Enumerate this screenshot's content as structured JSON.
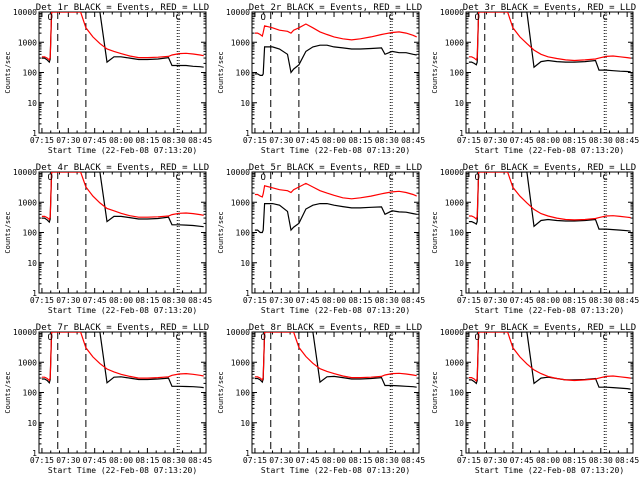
{
  "figure": {
    "start_time_label": "Start Time (22-Feb-08 07:13:20)",
    "ylabel": "Counts/sec"
  },
  "chart_data": [
    {
      "type": "line",
      "title": "Det 1r BLACK = Events, RED = LLD",
      "ylim": [
        1,
        10000
      ],
      "yscale": "log",
      "x": [
        0,
        1.5,
        3,
        4.2,
        4.7,
        5.5,
        10,
        14,
        18.5,
        20.5,
        22,
        25,
        29,
        33,
        37,
        41,
        45,
        50,
        55,
        60,
        66,
        72,
        74,
        78,
        82,
        86,
        90,
        92
      ],
      "series": [
        {
          "name": "Events",
          "color": "#000000",
          "values": [
            300,
            300,
            260,
            220,
            280,
            10000,
            10000,
            10000,
            10000,
            10000,
            10000,
            10000,
            10000,
            10000,
            220,
            330,
            330,
            300,
            270,
            270,
            280,
            310,
            170,
            170,
            170,
            160,
            155,
            150
          ]
        },
        {
          "name": "LLD",
          "color": "#ff0000",
          "values": [
            330,
            330,
            300,
            260,
            320,
            10000,
            10000,
            10000,
            10000,
            10000,
            10000,
            3000,
            1500,
            900,
            600,
            500,
            420,
            350,
            310,
            310,
            320,
            340,
            380,
            420,
            430,
            410,
            380,
            360
          ]
        }
      ],
      "x_ticks": [
        "07:15",
        "07:30",
        "07:45",
        "08:00",
        "08:15",
        "08:30",
        "08:45"
      ],
      "y_ticks": [
        "1",
        "10",
        "100",
        "1000",
        "10000"
      ],
      "markers": [
        "O",
        "C"
      ]
    },
    {
      "type": "line",
      "title": "Det 2r BLACK = Events, RED = LLD",
      "ylim": [
        1,
        10000
      ],
      "yscale": "log",
      "x": [
        0,
        1.5,
        3,
        4.2,
        4.7,
        5.5,
        10,
        14,
        18.5,
        20.5,
        22,
        25,
        29,
        33,
        37,
        41,
        45,
        50,
        55,
        60,
        66,
        72,
        74,
        78,
        82,
        86,
        90,
        92
      ],
      "series": [
        {
          "name": "Events",
          "color": "#000000",
          "values": [
            90,
            90,
            80,
            80,
            90,
            700,
            700,
            600,
            400,
            100,
            130,
            180,
            500,
            700,
            800,
            800,
            700,
            650,
            600,
            600,
            620,
            650,
            400,
            500,
            450,
            450,
            400,
            380
          ]
        },
        {
          "name": "LLD",
          "color": "#ff0000",
          "values": [
            2000,
            2000,
            1800,
            1600,
            2100,
            3500,
            3000,
            2500,
            2300,
            2000,
            2500,
            3000,
            4000,
            3000,
            2200,
            1800,
            1500,
            1300,
            1200,
            1300,
            1500,
            1800,
            1900,
            2100,
            2200,
            2000,
            1700,
            1500
          ]
        }
      ],
      "x_ticks": [
        "07:15",
        "07:30",
        "07:45",
        "08:00",
        "08:15",
        "08:30",
        "08:45"
      ],
      "y_ticks": [
        "1",
        "10",
        "100",
        "1000",
        "10000"
      ],
      "markers": [
        "O",
        "C"
      ]
    },
    {
      "type": "line",
      "title": "Det 3r BLACK = Events, RED = LLD",
      "ylim": [
        1,
        10000
      ],
      "yscale": "log",
      "x": [
        0,
        1.5,
        3,
        4.2,
        4.7,
        5.5,
        10,
        14,
        18.5,
        20.5,
        22,
        25,
        29,
        33,
        37,
        41,
        45,
        50,
        55,
        60,
        66,
        72,
        74,
        78,
        82,
        86,
        90,
        92
      ],
      "series": [
        {
          "name": "Events",
          "color": "#000000",
          "values": [
            220,
            220,
            200,
            180,
            220,
            10000,
            10000,
            10000,
            10000,
            10000,
            10000,
            10000,
            10000,
            10000,
            150,
            230,
            250,
            230,
            220,
            220,
            230,
            250,
            120,
            120,
            115,
            110,
            108,
            105
          ]
        },
        {
          "name": "LLD",
          "color": "#ff0000",
          "values": [
            330,
            330,
            300,
            260,
            320,
            10000,
            10000,
            10000,
            10000,
            10000,
            10000,
            3000,
            1500,
            900,
            550,
            400,
            330,
            290,
            260,
            250,
            260,
            280,
            300,
            340,
            350,
            330,
            310,
            300
          ]
        }
      ],
      "x_ticks": [
        "07:15",
        "07:30",
        "07:45",
        "08:00",
        "08:15",
        "08:30",
        "08:45"
      ],
      "y_ticks": [
        "1",
        "10",
        "100",
        "1000",
        "10000"
      ],
      "markers": [
        "O",
        "C"
      ]
    },
    {
      "type": "line",
      "title": "Det 4r BLACK = Events, RED = LLD",
      "ylim": [
        1,
        10000
      ],
      "yscale": "log",
      "x": [
        0,
        1.5,
        3,
        4.2,
        4.7,
        5.5,
        10,
        14,
        18.5,
        20.5,
        22,
        25,
        29,
        33,
        37,
        41,
        45,
        50,
        55,
        60,
        66,
        72,
        74,
        78,
        82,
        86,
        90,
        92
      ],
      "series": [
        {
          "name": "Events",
          "color": "#000000",
          "values": [
            300,
            300,
            260,
            220,
            280,
            10000,
            10000,
            10000,
            10000,
            10000,
            10000,
            10000,
            10000,
            10000,
            230,
            340,
            340,
            310,
            280,
            280,
            290,
            320,
            180,
            180,
            175,
            170,
            160,
            155
          ]
        },
        {
          "name": "LLD",
          "color": "#ff0000",
          "values": [
            340,
            340,
            310,
            270,
            330,
            10000,
            10000,
            10000,
            10000,
            10000,
            10000,
            3200,
            1600,
            950,
            620,
            520,
            430,
            360,
            320,
            320,
            330,
            350,
            390,
            430,
            440,
            420,
            390,
            370
          ]
        }
      ],
      "x_ticks": [
        "07:15",
        "07:30",
        "07:45",
        "08:00",
        "08:15",
        "08:30",
        "08:45"
      ],
      "y_ticks": [
        "1",
        "10",
        "100",
        "1000",
        "10000"
      ],
      "markers": [
        "O",
        "C"
      ]
    },
    {
      "type": "line",
      "title": "Det 5r BLACK = Events, RED = LLD",
      "ylim": [
        1,
        10000
      ],
      "yscale": "log",
      "x": [
        0,
        1.5,
        3,
        4.2,
        4.7,
        5.5,
        10,
        14,
        18.5,
        20.5,
        22,
        25,
        29,
        33,
        37,
        41,
        45,
        50,
        55,
        60,
        66,
        72,
        74,
        78,
        82,
        86,
        90,
        92
      ],
      "series": [
        {
          "name": "Events",
          "color": "#000000",
          "values": [
            120,
            120,
            100,
            100,
            120,
            900,
            900,
            800,
            500,
            120,
            150,
            200,
            600,
            800,
            900,
            900,
            800,
            720,
            650,
            650,
            680,
            700,
            400,
            520,
            480,
            470,
            420,
            400
          ]
        },
        {
          "name": "LLD",
          "color": "#ff0000",
          "values": [
            1800,
            1800,
            1600,
            1500,
            1900,
            3500,
            3000,
            2600,
            2400,
            2100,
            2600,
            3200,
            4200,
            3200,
            2400,
            2000,
            1700,
            1400,
            1300,
            1400,
            1600,
            1900,
            2000,
            2200,
            2300,
            2100,
            1800,
            1600
          ]
        }
      ],
      "x_ticks": [
        "07:15",
        "07:30",
        "07:45",
        "08:00",
        "08:15",
        "08:30",
        "08:45"
      ],
      "y_ticks": [
        "1",
        "10",
        "100",
        "1000",
        "10000"
      ],
      "markers": [
        "O",
        "C"
      ]
    },
    {
      "type": "line",
      "title": "Det 6r BLACK = Events, RED = LLD",
      "ylim": [
        1,
        10000
      ],
      "yscale": "log",
      "x": [
        0,
        1.5,
        3,
        4.2,
        4.7,
        5.5,
        10,
        14,
        18.5,
        20.5,
        22,
        25,
        29,
        33,
        37,
        41,
        45,
        50,
        55,
        60,
        66,
        72,
        74,
        78,
        82,
        86,
        90,
        92
      ],
      "series": [
        {
          "name": "Events",
          "color": "#000000",
          "values": [
            230,
            230,
            210,
            190,
            230,
            10000,
            10000,
            10000,
            10000,
            10000,
            10000,
            10000,
            10000,
            10000,
            160,
            250,
            270,
            250,
            240,
            240,
            250,
            270,
            130,
            130,
            125,
            120,
            115,
            110
          ]
        },
        {
          "name": "LLD",
          "color": "#ff0000",
          "values": [
            350,
            350,
            320,
            280,
            340,
            10000,
            10000,
            10000,
            10000,
            10000,
            10000,
            3100,
            1600,
            950,
            580,
            420,
            350,
            300,
            270,
            260,
            270,
            290,
            310,
            350,
            360,
            340,
            320,
            310
          ]
        }
      ],
      "x_ticks": [
        "07:15",
        "07:30",
        "07:45",
        "08:00",
        "08:15",
        "08:30",
        "08:45"
      ],
      "y_ticks": [
        "1",
        "10",
        "100",
        "1000",
        "10000"
      ],
      "markers": [
        "O",
        "C"
      ]
    },
    {
      "type": "line",
      "title": "Det 7r BLACK = Events, RED = LLD",
      "ylim": [
        1,
        10000
      ],
      "yscale": "log",
      "x": [
        0,
        1.5,
        3,
        4.2,
        4.7,
        5.5,
        10,
        14,
        18.5,
        20.5,
        22,
        25,
        29,
        33,
        37,
        41,
        45,
        50,
        55,
        60,
        66,
        72,
        74,
        78,
        82,
        86,
        90,
        92
      ],
      "series": [
        {
          "name": "Events",
          "color": "#000000",
          "values": [
            280,
            280,
            250,
            210,
            270,
            10000,
            10000,
            10000,
            10000,
            10000,
            10000,
            10000,
            10000,
            10000,
            210,
            320,
            330,
            300,
            270,
            270,
            280,
            300,
            160,
            160,
            158,
            155,
            150,
            145
          ]
        },
        {
          "name": "LLD",
          "color": "#ff0000",
          "values": [
            320,
            320,
            290,
            250,
            310,
            10000,
            10000,
            10000,
            10000,
            10000,
            10000,
            3000,
            1500,
            900,
            600,
            480,
            400,
            340,
            300,
            300,
            310,
            330,
            370,
            410,
            420,
            400,
            370,
            350
          ]
        }
      ],
      "x_ticks": [
        "07:15",
        "07:30",
        "07:45",
        "08:00",
        "08:15",
        "08:30",
        "08:45"
      ],
      "y_ticks": [
        "1",
        "10",
        "100",
        "1000",
        "10000"
      ],
      "markers": [
        "O",
        "C"
      ]
    },
    {
      "type": "line",
      "title": "Det 8r BLACK = Events, RED = LLD",
      "ylim": [
        1,
        10000
      ],
      "yscale": "log",
      "x": [
        0,
        1.5,
        3,
        4.2,
        4.7,
        5.5,
        10,
        14,
        18.5,
        20.5,
        22,
        25,
        29,
        33,
        37,
        41,
        45,
        50,
        55,
        60,
        66,
        72,
        74,
        78,
        82,
        86,
        90,
        92
      ],
      "series": [
        {
          "name": "Events",
          "color": "#000000",
          "values": [
            290,
            290,
            260,
            220,
            280,
            10000,
            10000,
            10000,
            10000,
            10000,
            10000,
            10000,
            10000,
            10000,
            220,
            330,
            340,
            310,
            280,
            280,
            290,
            310,
            170,
            170,
            165,
            160,
            155,
            150
          ]
        },
        {
          "name": "LLD",
          "color": "#ff0000",
          "values": [
            330,
            330,
            300,
            260,
            320,
            10000,
            10000,
            10000,
            10000,
            10000,
            10000,
            3100,
            1550,
            920,
            610,
            500,
            420,
            350,
            310,
            310,
            320,
            340,
            380,
            420,
            430,
            410,
            380,
            360
          ]
        }
      ],
      "x_ticks": [
        "07:15",
        "07:30",
        "07:45",
        "08:00",
        "08:15",
        "08:30",
        "08:45"
      ],
      "y_ticks": [
        "1",
        "10",
        "100",
        "1000",
        "10000"
      ],
      "markers": [
        "O",
        "C"
      ]
    },
    {
      "type": "line",
      "title": "Det 9r BLACK = Events, RED = LLD",
      "ylim": [
        1,
        10000
      ],
      "yscale": "log",
      "x": [
        0,
        1.5,
        3,
        4.2,
        4.7,
        5.5,
        10,
        14,
        18.5,
        20.5,
        22,
        25,
        29,
        33,
        37,
        41,
        45,
        50,
        55,
        60,
        66,
        72,
        74,
        78,
        82,
        86,
        90,
        92
      ],
      "series": [
        {
          "name": "Events",
          "color": "#000000",
          "values": [
            260,
            260,
            230,
            200,
            250,
            10000,
            10000,
            10000,
            10000,
            10000,
            10000,
            10000,
            10000,
            10000,
            200,
            300,
            320,
            290,
            260,
            260,
            270,
            290,
            150,
            150,
            145,
            140,
            135,
            130
          ]
        },
        {
          "name": "LLD",
          "color": "#ff0000",
          "values": [
            310,
            310,
            280,
            240,
            300,
            10000,
            10000,
            10000,
            10000,
            10000,
            10000,
            3000,
            1500,
            880,
            560,
            420,
            340,
            290,
            260,
            250,
            260,
            280,
            300,
            340,
            350,
            330,
            310,
            300
          ]
        }
      ],
      "x_ticks": [
        "07:15",
        "07:30",
        "07:45",
        "08:00",
        "08:15",
        "08:30",
        "08:45"
      ],
      "y_ticks": [
        "1",
        "10",
        "100",
        "1000",
        "10000"
      ],
      "markers": [
        "O",
        "C"
      ]
    }
  ]
}
